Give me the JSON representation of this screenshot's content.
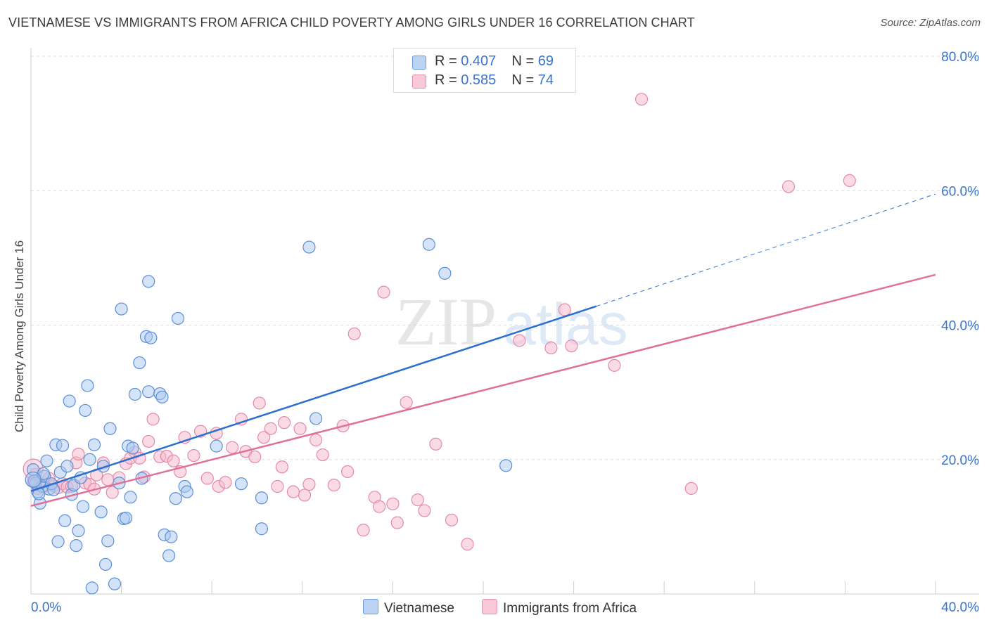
{
  "title": "VIETNAMESE VS IMMIGRANTS FROM AFRICA CHILD POVERTY AMONG GIRLS UNDER 16 CORRELATION CHART",
  "source": "Source: ZipAtlas.com",
  "watermark": {
    "zip": "ZIP",
    "atlas": "atlas"
  },
  "legend": {
    "rows": [
      {
        "r_label": "R =",
        "r_value": "0.407",
        "n_label": "N =",
        "n_value": "69"
      },
      {
        "r_label": "R =",
        "r_value": "0.585",
        "n_label": "N =",
        "n_value": "74"
      }
    ],
    "bottom": [
      "Vietnamese",
      "Immigrants from Africa"
    ]
  },
  "colors": {
    "blue_fill": "#a9c8f0",
    "blue_stroke": "#5b8fd6",
    "blue_line": "#2a6fcf",
    "pink_fill": "#f5b8cb",
    "pink_stroke": "#e58aa6",
    "pink_line": "#e0709a",
    "axis_text": "#3a73c9",
    "grid": "#dddddd"
  },
  "chart_data": {
    "type": "scatter",
    "title": "VIETNAMESE VS IMMIGRANTS FROM AFRICA CHILD POVERTY AMONG GIRLS UNDER 16 CORRELATION CHART",
    "xlabel": "",
    "ylabel": "Child Poverty Among Girls Under 16",
    "xlim": [
      0,
      40
    ],
    "ylim": [
      0,
      80
    ],
    "x_tick_labels": [
      {
        "value": 0,
        "label": "0.0%"
      },
      {
        "value": 40,
        "label": "40.0%"
      }
    ],
    "y_tick_labels": [
      {
        "value": 20,
        "label": "20.0%"
      },
      {
        "value": 40,
        "label": "40.0%"
      },
      {
        "value": 60,
        "label": "60.0%"
      },
      {
        "value": 80,
        "label": "80.0%"
      }
    ],
    "series": [
      {
        "name": "Vietnamese",
        "r": 0.407,
        "n": 69,
        "trend": {
          "x0": 0,
          "y0": 15.3,
          "x1": 25,
          "y1": 42.8,
          "dash_to_x": 40,
          "dash_to_y": 59.5
        },
        "points": [
          [
            0.1,
            18.5
          ],
          [
            0.2,
            16.5
          ],
          [
            0.3,
            15.2
          ],
          [
            0.4,
            13.5
          ],
          [
            0.5,
            16.0
          ],
          [
            0.6,
            17.5
          ],
          [
            0.7,
            19.8
          ],
          [
            0.8,
            15.6
          ],
          [
            0.9,
            16.4
          ],
          [
            1.0,
            15.5
          ],
          [
            1.1,
            22.2
          ],
          [
            1.2,
            7.8
          ],
          [
            1.3,
            18.1
          ],
          [
            1.4,
            22.1
          ],
          [
            1.5,
            10.9
          ],
          [
            1.6,
            19.0
          ],
          [
            1.7,
            28.7
          ],
          [
            1.8,
            14.8
          ],
          [
            1.9,
            16.2
          ],
          [
            2.0,
            7.2
          ],
          [
            2.1,
            9.4
          ],
          [
            2.2,
            17.3
          ],
          [
            2.3,
            13.0
          ],
          [
            2.4,
            27.3
          ],
          [
            2.5,
            31.0
          ],
          [
            2.6,
            20.0
          ],
          [
            2.7,
            0.9
          ],
          [
            2.8,
            22.2
          ],
          [
            3.1,
            12.2
          ],
          [
            3.2,
            19.0
          ],
          [
            3.3,
            4.4
          ],
          [
            3.4,
            7.9
          ],
          [
            3.5,
            24.6
          ],
          [
            3.7,
            1.5
          ],
          [
            3.9,
            16.5
          ],
          [
            4.0,
            42.4
          ],
          [
            4.1,
            11.2
          ],
          [
            4.2,
            11.3
          ],
          [
            4.3,
            22.0
          ],
          [
            4.4,
            14.4
          ],
          [
            4.5,
            21.7
          ],
          [
            4.6,
            29.7
          ],
          [
            4.8,
            34.4
          ],
          [
            4.9,
            17.2
          ],
          [
            5.1,
            38.3
          ],
          [
            5.2,
            30.1
          ],
          [
            5.2,
            46.5
          ],
          [
            5.3,
            38.1
          ],
          [
            5.7,
            29.8
          ],
          [
            5.8,
            29.3
          ],
          [
            5.9,
            8.8
          ],
          [
            6.1,
            5.7
          ],
          [
            6.2,
            8.5
          ],
          [
            6.4,
            14.2
          ],
          [
            6.5,
            41.0
          ],
          [
            6.8,
            16.0
          ],
          [
            6.9,
            15.2
          ],
          [
            8.2,
            22.0
          ],
          [
            9.3,
            16.4
          ],
          [
            10.2,
            9.7
          ],
          [
            10.2,
            14.3
          ],
          [
            12.3,
            51.6
          ],
          [
            12.6,
            26.1
          ],
          [
            17.6,
            52.0
          ],
          [
            18.3,
            47.7
          ],
          [
            21.0,
            19.1
          ],
          [
            0.15,
            16.8
          ],
          [
            0.35,
            14.9
          ],
          [
            0.55,
            17.9
          ]
        ]
      },
      {
        "name": "Immigrants from Africa",
        "r": 0.585,
        "n": 74,
        "trend": {
          "x0": 0,
          "y0": 13.1,
          "x1": 40,
          "y1": 47.5
        },
        "points": [
          [
            0.1,
            16.8
          ],
          [
            0.2,
            17.8
          ],
          [
            0.3,
            15.7
          ],
          [
            0.4,
            16.3
          ],
          [
            0.6,
            16.0
          ],
          [
            0.8,
            17.2
          ],
          [
            1.0,
            16.1
          ],
          [
            1.2,
            15.8
          ],
          [
            1.4,
            16.4
          ],
          [
            1.6,
            15.9
          ],
          [
            1.8,
            16.0
          ],
          [
            2.0,
            19.5
          ],
          [
            2.1,
            20.8
          ],
          [
            2.4,
            16.5
          ],
          [
            2.6,
            16.3
          ],
          [
            2.8,
            15.6
          ],
          [
            2.9,
            17.7
          ],
          [
            3.2,
            19.5
          ],
          [
            3.4,
            17.0
          ],
          [
            3.6,
            15.1
          ],
          [
            3.9,
            17.3
          ],
          [
            4.2,
            19.4
          ],
          [
            4.4,
            20.2
          ],
          [
            4.6,
            21.1
          ],
          [
            4.8,
            20.2
          ],
          [
            5.0,
            17.4
          ],
          [
            5.2,
            22.7
          ],
          [
            5.4,
            26.0
          ],
          [
            5.7,
            20.4
          ],
          [
            6.0,
            20.5
          ],
          [
            6.3,
            19.8
          ],
          [
            6.6,
            18.2
          ],
          [
            6.8,
            23.3
          ],
          [
            7.2,
            20.6
          ],
          [
            7.5,
            24.2
          ],
          [
            7.8,
            17.2
          ],
          [
            8.2,
            23.9
          ],
          [
            8.3,
            16.0
          ],
          [
            8.6,
            16.6
          ],
          [
            8.9,
            21.8
          ],
          [
            9.3,
            26.0
          ],
          [
            9.5,
            21.2
          ],
          [
            9.9,
            20.4
          ],
          [
            10.1,
            28.4
          ],
          [
            10.3,
            23.3
          ],
          [
            10.6,
            24.6
          ],
          [
            10.9,
            16.0
          ],
          [
            11.1,
            18.9
          ],
          [
            11.2,
            25.5
          ],
          [
            11.6,
            15.2
          ],
          [
            11.9,
            24.6
          ],
          [
            12.1,
            14.7
          ],
          [
            12.3,
            16.3
          ],
          [
            12.6,
            22.9
          ],
          [
            12.9,
            20.7
          ],
          [
            13.4,
            16.2
          ],
          [
            13.8,
            25.0
          ],
          [
            14.0,
            18.2
          ],
          [
            14.3,
            38.7
          ],
          [
            14.7,
            9.5
          ],
          [
            15.2,
            14.4
          ],
          [
            15.4,
            13.0
          ],
          [
            15.6,
            44.9
          ],
          [
            16.0,
            13.4
          ],
          [
            16.2,
            10.6
          ],
          [
            16.6,
            28.5
          ],
          [
            17.1,
            14.0
          ],
          [
            17.4,
            12.4
          ],
          [
            17.9,
            22.3
          ],
          [
            18.6,
            11.0
          ],
          [
            19.3,
            7.4
          ],
          [
            21.6,
            37.7
          ],
          [
            23.0,
            36.6
          ],
          [
            23.6,
            42.3
          ]
        ],
        "extra_points": [
          [
            23.9,
            36.9
          ],
          [
            25.8,
            34.0
          ],
          [
            27.0,
            73.6
          ],
          [
            29.2,
            15.7
          ],
          [
            33.5,
            60.6
          ],
          [
            36.2,
            61.5
          ]
        ]
      }
    ]
  }
}
